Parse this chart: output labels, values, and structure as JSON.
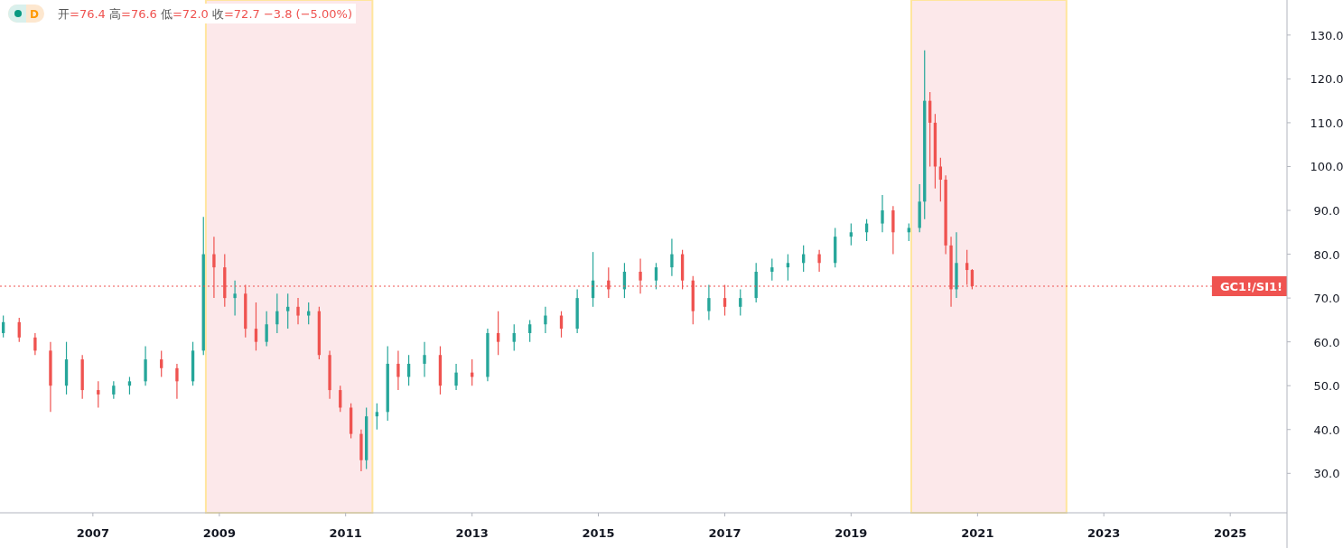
{
  "chart_data": {
    "type": "candlestick",
    "annotations": [
      "D",
      "开=76.4 高=76.6 低=72.0 收=72.7 −3.8 (−5.00%)"
    ],
    "x": [
      "2005-08",
      "2005-11",
      "2006-02",
      "2006-05",
      "2006-08",
      "2006-11",
      "2007-02",
      "2007-05",
      "2007-08",
      "2007-11",
      "2008-02",
      "2008-05",
      "2008-08",
      "2008-10",
      "2008-12",
      "2009-02",
      "2009-04",
      "2009-06",
      "2009-08",
      "2009-10",
      "2009-12",
      "2010-02",
      "2010-04",
      "2010-06",
      "2010-08",
      "2010-10",
      "2010-12",
      "2011-02",
      "2011-04",
      "2011-05",
      "2011-07",
      "2011-09",
      "2011-11",
      "2012-01",
      "2012-04",
      "2012-07",
      "2012-10",
      "2013-01",
      "2013-04",
      "2013-06",
      "2013-09",
      "2013-12",
      "2014-03",
      "2014-06",
      "2014-09",
      "2014-12",
      "2015-03",
      "2015-06",
      "2015-09",
      "2015-12",
      "2016-03",
      "2016-05",
      "2016-07",
      "2016-10",
      "2017-01",
      "2017-04",
      "2017-07",
      "2017-10",
      "2018-01",
      "2018-04",
      "2018-07",
      "2018-10",
      "2019-01",
      "2019-04",
      "2019-07",
      "2019-09",
      "2019-12",
      "2020-02",
      "2020-03",
      "2020-04",
      "2020-05",
      "2020-06",
      "2020-07",
      "2020-08",
      "2020-09",
      "2020-11",
      "2020-12"
    ],
    "ohlc": [
      [
        62,
        66,
        61,
        64.5
      ],
      [
        64.5,
        65.5,
        60,
        61
      ],
      [
        61,
        62,
        57,
        58
      ],
      [
        58,
        60,
        44,
        50
      ],
      [
        50,
        60,
        48,
        56
      ],
      [
        56,
        57,
        47,
        49
      ],
      [
        49,
        51,
        45,
        48
      ],
      [
        48,
        51,
        47,
        50
      ],
      [
        50,
        52,
        48,
        51
      ],
      [
        51,
        59,
        50,
        56
      ],
      [
        56,
        58,
        52,
        54
      ],
      [
        54,
        55,
        47,
        51
      ],
      [
        51,
        60,
        50,
        58
      ],
      [
        58,
        88.5,
        57,
        80
      ],
      [
        80,
        84,
        70,
        77
      ],
      [
        77,
        80,
        68,
        70
      ],
      [
        70,
        74,
        66,
        71
      ],
      [
        71,
        73,
        61,
        63
      ],
      [
        63,
        69,
        58,
        60
      ],
      [
        60,
        67,
        59,
        64
      ],
      [
        64,
        71,
        62,
        67
      ],
      [
        67,
        71,
        63,
        68
      ],
      [
        68,
        70,
        64,
        66
      ],
      [
        66,
        69,
        64,
        67
      ],
      [
        67,
        68,
        56,
        57
      ],
      [
        57,
        58,
        47,
        49
      ],
      [
        49,
        50,
        44,
        45
      ],
      [
        45,
        46,
        38,
        39
      ],
      [
        39,
        40,
        30.5,
        33
      ],
      [
        33,
        45,
        31,
        43
      ],
      [
        43,
        46,
        40,
        44
      ],
      [
        44,
        59,
        42,
        55
      ],
      [
        55,
        58,
        49,
        52
      ],
      [
        52,
        57,
        50,
        55
      ],
      [
        55,
        60,
        52,
        57
      ],
      [
        57,
        59,
        48,
        50
      ],
      [
        50,
        55,
        49,
        53
      ],
      [
        53,
        56,
        50,
        52
      ],
      [
        52,
        63,
        51,
        62
      ],
      [
        62,
        67,
        57,
        60
      ],
      [
        60,
        64,
        58,
        62
      ],
      [
        62,
        65,
        60,
        64
      ],
      [
        64,
        68,
        62,
        66
      ],
      [
        66,
        67,
        61,
        63
      ],
      [
        63,
        72,
        62,
        70
      ],
      [
        70,
        80.5,
        68,
        74
      ],
      [
        74,
        77,
        70,
        72
      ],
      [
        72,
        78,
        70,
        76
      ],
      [
        76,
        79,
        71,
        74
      ],
      [
        74,
        78,
        72,
        77
      ],
      [
        77,
        83.5,
        75,
        80
      ],
      [
        80,
        81,
        72,
        74
      ],
      [
        74,
        75,
        64,
        67
      ],
      [
        67,
        73,
        65,
        70
      ],
      [
        70,
        73,
        66,
        68
      ],
      [
        68,
        72,
        66,
        70
      ],
      [
        70,
        78,
        69,
        76
      ],
      [
        76,
        79,
        74,
        77
      ],
      [
        77,
        80,
        74,
        78
      ],
      [
        78,
        82,
        76,
        80
      ],
      [
        80,
        81,
        76,
        78
      ],
      [
        78,
        86,
        77,
        84
      ],
      [
        84,
        87,
        82,
        85
      ],
      [
        85,
        88,
        83,
        87
      ],
      [
        87,
        93.5,
        85,
        90
      ],
      [
        90,
        91,
        80,
        85
      ],
      [
        85,
        87,
        83,
        86
      ],
      [
        86,
        96,
        85,
        92
      ],
      [
        92,
        126.5,
        88,
        115
      ],
      [
        115,
        117,
        100,
        110
      ],
      [
        110,
        112,
        95,
        100
      ],
      [
        100,
        102,
        92,
        97
      ],
      [
        97,
        98,
        80,
        82
      ],
      [
        82,
        84,
        68,
        72
      ],
      [
        72,
        85,
        70,
        78
      ],
      [
        78,
        81,
        73,
        76.4
      ],
      [
        76.4,
        76.6,
        72.0,
        72.7
      ]
    ],
    "colors": [
      "#26a69a",
      "#ef5350",
      "#ef5350",
      "#ef5350",
      "#26a69a",
      "#ef5350",
      "#ef5350",
      "#26a69a",
      "#26a69a",
      "#26a69a",
      "#ef5350",
      "#ef5350",
      "#26a69a",
      "#26a69a",
      "#ef5350",
      "#ef5350",
      "#26a69a",
      "#ef5350",
      "#ef5350",
      "#26a69a",
      "#26a69a",
      "#26a69a",
      "#ef5350",
      "#26a69a",
      "#ef5350",
      "#ef5350",
      "#ef5350",
      "#ef5350",
      "#ef5350",
      "#26a69a",
      "#26a69a",
      "#26a69a",
      "#ef5350",
      "#26a69a",
      "#26a69a",
      "#ef5350",
      "#26a69a",
      "#ef5350",
      "#26a69a",
      "#ef5350",
      "#26a69a",
      "#26a69a",
      "#26a69a",
      "#ef5350",
      "#26a69a",
      "#26a69a",
      "#ef5350",
      "#26a69a",
      "#ef5350",
      "#26a69a",
      "#26a69a",
      "#ef5350",
      "#ef5350",
      "#26a69a",
      "#ef5350",
      "#26a69a",
      "#26a69a",
      "#26a69a",
      "#26a69a",
      "#26a69a",
      "#ef5350",
      "#26a69a",
      "#26a69a",
      "#26a69a",
      "#26a69a",
      "#ef5350",
      "#26a69a",
      "#26a69a",
      "#26a69a",
      "#ef5350",
      "#ef5350",
      "#ef5350",
      "#ef5350",
      "#ef5350",
      "#26a69a",
      "#ef5350",
      "#ef5350"
    ],
    "xlim": [
      "2005-07-13",
      "2025-11-25"
    ],
    "xticks": [
      "2007",
      "2009",
      "2011",
      "2013",
      "2015",
      "2017",
      "2019",
      "2021",
      "2023",
      "2025"
    ],
    "ylim": [
      21,
      138
    ],
    "yticks": [
      {
        "value": 30,
        "label": "30.0"
      },
      {
        "value": 40,
        "label": "40.0"
      },
      {
        "value": 50,
        "label": "50.0"
      },
      {
        "value": 60,
        "label": "60.0"
      },
      {
        "value": 70,
        "label": "70.0"
      },
      {
        "value": 80,
        "label": "80.0"
      },
      {
        "value": 90,
        "label": "90.0"
      },
      {
        "value": 100,
        "label": "100.0"
      },
      {
        "value": 110,
        "label": "110.0"
      },
      {
        "value": 120,
        "label": "120.0"
      },
      {
        "value": 130,
        "label": "130.0"
      }
    ],
    "ref_lines": [
      {
        "axis": "y",
        "value": 72.7,
        "label": "GC1!/SI1!",
        "color": "#ef5350",
        "line_style": "dotted"
      }
    ],
    "bands": [
      {
        "axis": "x",
        "from": "2008-10-15",
        "to": "2011-06-05",
        "color": "#fce8ea"
      },
      {
        "axis": "x",
        "from": "2019-12-15",
        "to": "2022-05-30",
        "color": "#fce8ea"
      }
    ],
    "grid": false
  }
}
